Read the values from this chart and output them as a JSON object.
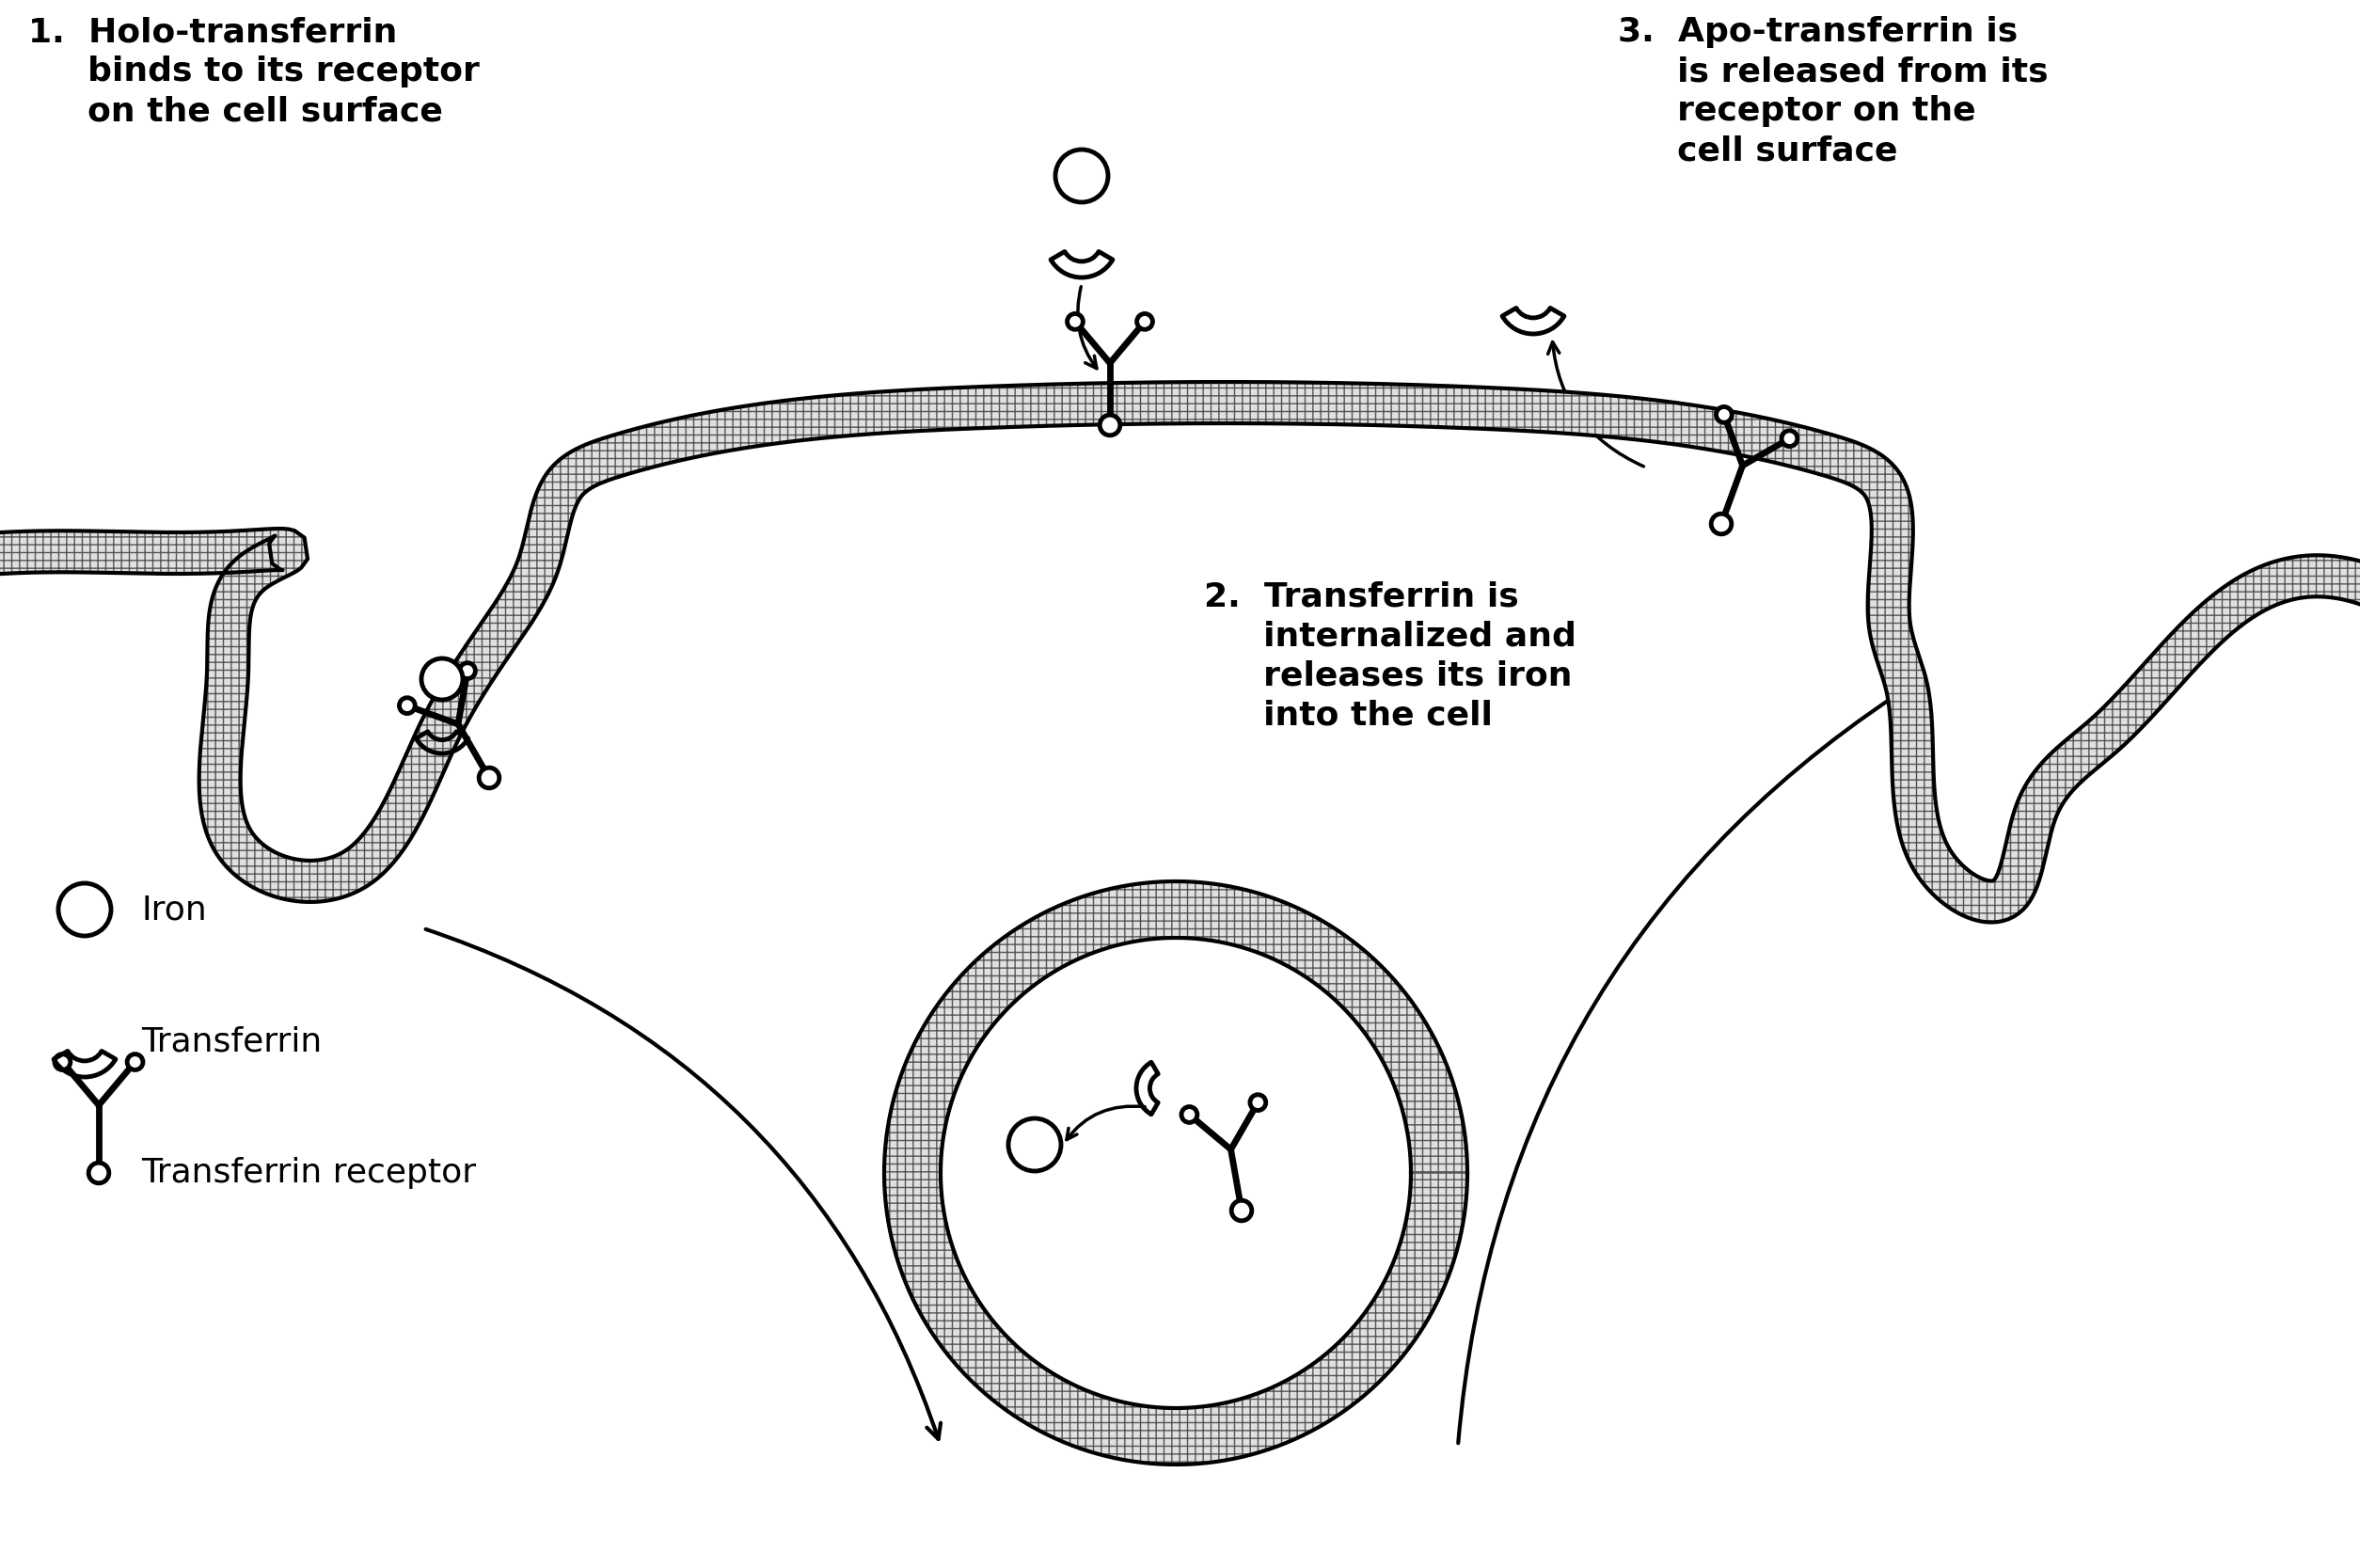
{
  "bg_color": "#ffffff",
  "line_color": "#000000",
  "label1_line1": "1.  Holo-transferrin",
  "label1_line2": "     binds to its receptor",
  "label1_line3": "     on the cell surface",
  "label2_line1": "2.  Transferrin is",
  "label2_line2": "     internalized and",
  "label2_line3": "     releases its iron",
  "label2_line4": "     into the cell",
  "label3_line1": "3.  Apo-transferrin is",
  "label3_line2": "     is released from its",
  "label3_line3": "     receptor on the",
  "label3_line4": "     cell surface",
  "legend_iron": "Iron",
  "legend_transferrin": "Transferrin",
  "legend_receptor": "Transferrin receptor",
  "membrane_lw": 3.0,
  "molecule_lw": 3.5
}
